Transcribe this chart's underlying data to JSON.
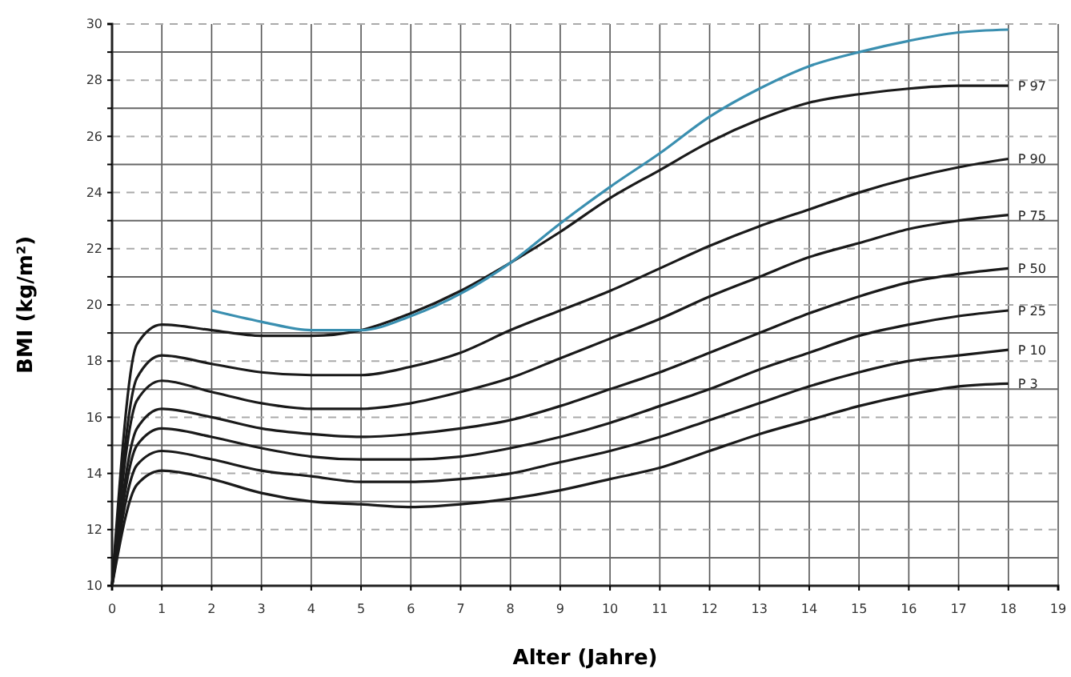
{
  "chart_data": {
    "type": "line",
    "xlabel": "Alter (Jahre)",
    "ylabel": "BMI (kg/m²)",
    "xlim": [
      0,
      19
    ],
    "ylim": [
      10,
      30
    ],
    "xticks": [
      0,
      1,
      2,
      3,
      4,
      5,
      6,
      7,
      8,
      9,
      10,
      11,
      12,
      13,
      14,
      15,
      16,
      17,
      18,
      19
    ],
    "yticks": [
      10,
      {
        "value": 11,
        "label": null
      },
      12,
      {
        "value": 13,
        "label": null
      },
      14,
      {
        "value": 15,
        "label": null
      },
      16,
      {
        "value": 17,
        "label": null
      },
      18,
      {
        "value": 19,
        "label": null
      },
      20,
      {
        "value": 21,
        "label": null
      },
      22,
      {
        "value": 23,
        "label": null
      },
      24,
      {
        "value": 25,
        "label": null
      },
      26,
      {
        "value": 27,
        "label": null
      },
      28,
      {
        "value": 29,
        "label": null
      },
      30
    ],
    "grid": true,
    "marker": "none",
    "line_style": "solid",
    "x": [
      0,
      0.5,
      1,
      2,
      3,
      4,
      5,
      6,
      7,
      8,
      9,
      10,
      11,
      12,
      13,
      14,
      15,
      16,
      17,
      18
    ],
    "series": [
      {
        "name": "P 97",
        "color": "#1a1a1a",
        "values": [
          10,
          18.6,
          19.3,
          19.1,
          18.9,
          18.9,
          19.1,
          19.7,
          20.5,
          21.5,
          22.6,
          23.8,
          24.8,
          25.8,
          26.6,
          27.2,
          27.5,
          27.7,
          27.8,
          27.8
        ]
      },
      {
        "name": "P 90",
        "color": "#1a1a1a",
        "values": [
          10,
          17.4,
          18.2,
          17.9,
          17.6,
          17.5,
          17.5,
          17.8,
          18.3,
          19.1,
          19.8,
          20.5,
          21.3,
          22.1,
          22.8,
          23.4,
          24.0,
          24.5,
          24.9,
          25.2
        ]
      },
      {
        "name": "P 75",
        "color": "#1a1a1a",
        "values": [
          10,
          16.6,
          17.3,
          16.9,
          16.5,
          16.3,
          16.3,
          16.5,
          16.9,
          17.4,
          18.1,
          18.8,
          19.5,
          20.3,
          21.0,
          21.7,
          22.2,
          22.7,
          23.0,
          23.2
        ]
      },
      {
        "name": "P 50",
        "color": "#1a1a1a",
        "values": [
          10,
          15.6,
          16.3,
          16.0,
          15.6,
          15.4,
          15.3,
          15.4,
          15.6,
          15.9,
          16.4,
          17.0,
          17.6,
          18.3,
          19.0,
          19.7,
          20.3,
          20.8,
          21.1,
          21.3
        ]
      },
      {
        "name": "P 25",
        "color": "#1a1a1a",
        "values": [
          10,
          15.0,
          15.6,
          15.3,
          14.9,
          14.6,
          14.5,
          14.5,
          14.6,
          14.9,
          15.3,
          15.8,
          16.4,
          17.0,
          17.7,
          18.3,
          18.9,
          19.3,
          19.6,
          19.8
        ]
      },
      {
        "name": "P 10",
        "color": "#1a1a1a",
        "values": [
          10,
          14.3,
          14.8,
          14.5,
          14.1,
          13.9,
          13.7,
          13.7,
          13.8,
          14.0,
          14.4,
          14.8,
          15.3,
          15.9,
          16.5,
          17.1,
          17.6,
          18.0,
          18.2,
          18.4
        ]
      },
      {
        "name": "P 3",
        "color": "#1a1a1a",
        "values": [
          10,
          13.6,
          14.1,
          13.8,
          13.3,
          13.0,
          12.9,
          12.8,
          12.9,
          13.1,
          13.4,
          13.8,
          14.2,
          14.8,
          15.4,
          15.9,
          16.4,
          16.8,
          17.1,
          17.2
        ]
      },
      {
        "color": "#3a8fb0",
        "x": [
          2,
          3,
          4,
          5,
          6,
          7,
          8,
          9,
          10,
          11,
          12,
          13,
          14,
          15,
          16,
          17,
          18
        ],
        "values": [
          19.8,
          19.4,
          19.1,
          19.1,
          19.6,
          20.4,
          21.5,
          22.9,
          24.2,
          25.4,
          26.7,
          27.7,
          28.5,
          29.0,
          29.4,
          29.7,
          29.8
        ]
      }
    ]
  }
}
